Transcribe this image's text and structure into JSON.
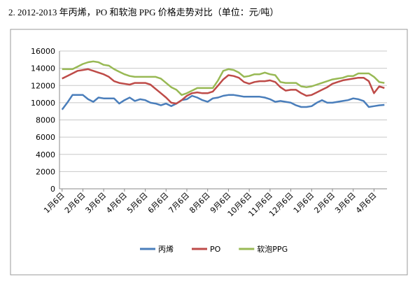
{
  "chart_data": {
    "type": "line",
    "title": "2. 2012-2013 年丙烯，PO 和软泡 PPG 价格走势对比（单位：元/吨）",
    "categories": [
      "1月6日",
      null,
      null,
      null,
      "2月6日",
      null,
      null,
      null,
      "3月6日",
      null,
      null,
      null,
      "4月6日",
      null,
      null,
      null,
      "5月6日",
      null,
      null,
      null,
      "6月6日",
      null,
      null,
      null,
      "7月6日",
      null,
      null,
      null,
      "8月6日",
      null,
      null,
      null,
      "9月6日",
      null,
      null,
      null,
      "10月6日",
      null,
      null,
      null,
      "11月6日",
      null,
      null,
      null,
      "12月6日",
      null,
      null,
      null,
      "1月6日",
      null,
      null,
      null,
      "2月6日",
      null,
      null,
      null,
      "3月6日",
      null,
      null,
      null,
      "4月6日",
      null,
      null
    ],
    "series": [
      {
        "name": "丙烯",
        "color": "#4a7ebb",
        "values": [
          9200,
          10000,
          10900,
          10900,
          10900,
          10400,
          10100,
          10600,
          10500,
          10500,
          10500,
          9900,
          10300,
          10600,
          10200,
          10400,
          10300,
          10000,
          9900,
          9700,
          9900,
          9600,
          9900,
          10300,
          10400,
          10800,
          10600,
          10300,
          10100,
          10500,
          10600,
          10800,
          10900,
          10900,
          10800,
          10700,
          10700,
          10700,
          10700,
          10600,
          10400,
          10100,
          10200,
          10100,
          10000,
          9700,
          9500,
          9500,
          9600,
          10000,
          10300,
          10000,
          10000,
          10100,
          10200,
          10300,
          10500,
          10400,
          10200,
          9500,
          9600,
          9700,
          9750
        ]
      },
      {
        "name": "PO",
        "color": "#be4b48",
        "values": [
          12800,
          13100,
          13400,
          13700,
          13800,
          13900,
          13700,
          13500,
          13300,
          13000,
          12500,
          12300,
          12200,
          12100,
          12300,
          12300,
          12300,
          12100,
          11600,
          11100,
          10600,
          10000,
          9900,
          10300,
          10800,
          11100,
          11200,
          11100,
          11100,
          11300,
          12000,
          12700,
          13200,
          13100,
          12900,
          12400,
          12200,
          12400,
          12500,
          12500,
          12600,
          12400,
          11800,
          11400,
          11500,
          11500,
          11100,
          10800,
          10900,
          11200,
          11500,
          11800,
          12200,
          12400,
          12600,
          12700,
          12800,
          12900,
          12900,
          12500,
          11100,
          11900,
          11700
        ]
      },
      {
        "name": "软泡PPG",
        "color": "#98b954",
        "values": [
          13900,
          13900,
          13900,
          14200,
          14500,
          14700,
          14800,
          14700,
          14400,
          14300,
          13900,
          13600,
          13300,
          13100,
          13000,
          13000,
          13000,
          13000,
          13000,
          12800,
          12300,
          11800,
          11500,
          10900,
          11100,
          11400,
          11700,
          11700,
          11700,
          11700,
          12600,
          13700,
          13900,
          13800,
          13500,
          13000,
          13100,
          13300,
          13300,
          13500,
          13300,
          13200,
          12400,
          12300,
          12300,
          12300,
          11900,
          11800,
          11900,
          12100,
          12300,
          12500,
          12700,
          12800,
          12900,
          13100,
          13100,
          13400,
          13400,
          13400,
          13000,
          12400,
          12300
        ]
      }
    ],
    "ylim": [
      0,
      16000
    ],
    "yticks": [
      0,
      2000,
      4000,
      6000,
      8000,
      10000,
      12000,
      14000,
      16000
    ],
    "grid": true,
    "legend": "bottom"
  }
}
